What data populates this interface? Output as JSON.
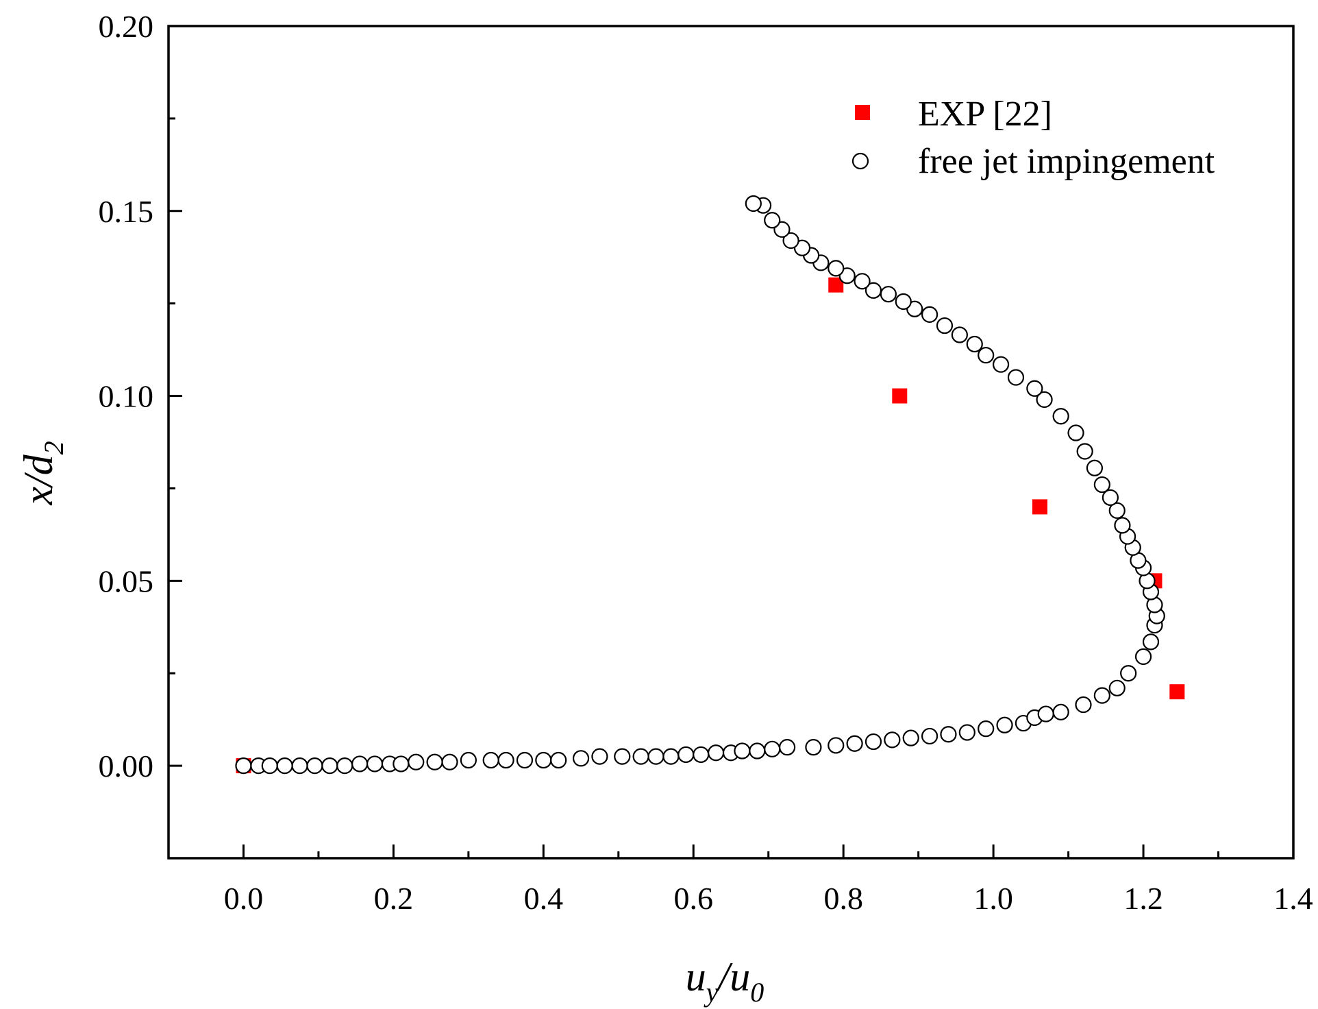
{
  "chart_data": {
    "type": "scatter",
    "title": "",
    "xlabel": {
      "main": "u",
      "sub": "y",
      "sep": "/u",
      "sub2": "0"
    },
    "ylabel": {
      "main": "x/d",
      "sub": "2"
    },
    "xlim": [
      -0.1,
      1.4
    ],
    "ylim": [
      -0.025,
      0.2
    ],
    "x_ticks": [
      0.0,
      0.2,
      0.4,
      0.6,
      0.8,
      1.0,
      1.2,
      1.4
    ],
    "x_tick_labels": [
      "0.0",
      "0.2",
      "0.4",
      "0.6",
      "0.8",
      "1.0",
      "1.2",
      "1.4"
    ],
    "y_ticks": [
      0.0,
      0.05,
      0.1,
      0.15,
      0.2
    ],
    "y_tick_labels": [
      "0.00",
      "0.05",
      "0.10",
      "0.15",
      "0.20"
    ],
    "grid": false,
    "legend_position": "top-right",
    "series": [
      {
        "name": "EXP [22]",
        "marker": "square",
        "color": "#ff0000",
        "x": [
          0.0,
          0.79,
          0.875,
          1.062,
          1.215,
          1.245
        ],
        "y": [
          0.0,
          0.13,
          0.1,
          0.07,
          0.05,
          0.02
        ]
      },
      {
        "name": "free jet impingement",
        "marker": "open-circle",
        "color": "#000000",
        "x": [
          0.0,
          0.02,
          0.035,
          0.055,
          0.075,
          0.095,
          0.115,
          0.135,
          0.155,
          0.175,
          0.195,
          0.21,
          0.23,
          0.255,
          0.275,
          0.3,
          0.33,
          0.35,
          0.375,
          0.4,
          0.42,
          0.45,
          0.475,
          0.505,
          0.53,
          0.55,
          0.57,
          0.59,
          0.61,
          0.63,
          0.65,
          0.665,
          0.685,
          0.705,
          0.725,
          0.76,
          0.79,
          0.815,
          0.84,
          0.865,
          0.89,
          0.915,
          0.94,
          0.965,
          0.99,
          1.015,
          1.04,
          1.055,
          1.07,
          1.09,
          1.12,
          1.145,
          1.165,
          1.18,
          1.2,
          1.21,
          1.215,
          1.218,
          1.215,
          1.21,
          1.205,
          1.2,
          1.193,
          1.186,
          1.179,
          1.172,
          1.165,
          1.156,
          1.145,
          1.135,
          1.122,
          1.11,
          1.09,
          1.068,
          1.055,
          1.03,
          1.01,
          0.99,
          0.975,
          0.955,
          0.935,
          0.915,
          0.895,
          0.88,
          0.86,
          0.84,
          0.825,
          0.805,
          0.79,
          0.77,
          0.757,
          0.745,
          0.73,
          0.718,
          0.705,
          0.693,
          0.68
        ],
        "y": [
          0.0,
          0.0,
          0.0,
          0.0,
          0.0,
          0.0,
          0.0,
          0.0,
          0.0005,
          0.0005,
          0.0005,
          0.0005,
          0.001,
          0.001,
          0.001,
          0.0015,
          0.0015,
          0.0015,
          0.0015,
          0.0015,
          0.0015,
          0.002,
          0.0025,
          0.0025,
          0.0025,
          0.0025,
          0.0025,
          0.003,
          0.003,
          0.0035,
          0.0035,
          0.004,
          0.004,
          0.0045,
          0.005,
          0.005,
          0.0055,
          0.006,
          0.0065,
          0.007,
          0.0075,
          0.008,
          0.0085,
          0.009,
          0.01,
          0.011,
          0.0115,
          0.013,
          0.014,
          0.0145,
          0.0165,
          0.019,
          0.021,
          0.025,
          0.0295,
          0.0335,
          0.038,
          0.0405,
          0.0435,
          0.047,
          0.05,
          0.0535,
          0.0555,
          0.059,
          0.062,
          0.065,
          0.069,
          0.0725,
          0.076,
          0.0805,
          0.085,
          0.09,
          0.0945,
          0.099,
          0.102,
          0.105,
          0.1085,
          0.111,
          0.114,
          0.1165,
          0.119,
          0.122,
          0.1235,
          0.1255,
          0.1275,
          0.1285,
          0.131,
          0.1325,
          0.1345,
          0.136,
          0.138,
          0.14,
          0.142,
          0.145,
          0.1475,
          0.1515,
          0.152
        ]
      }
    ]
  }
}
